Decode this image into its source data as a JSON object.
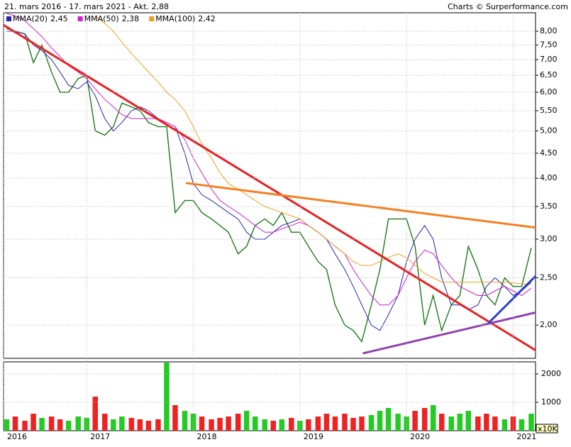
{
  "header": {
    "period": "21. mars 2016 - 17. mars 2021 - Akt. 2,88",
    "credit": "Charts © Surperformance.com"
  },
  "chart_data": [
    {
      "type": "line",
      "log_scale": true,
      "grid": true,
      "xlim": [
        2016.22,
        2021.21
      ],
      "xticks": [
        {
          "value": 2016.22,
          "label": "2016"
        },
        2017,
        2018,
        2019,
        2020,
        2021
      ],
      "ylim": [
        1.71,
        8.73
      ],
      "yticks": [
        {
          "value": 2,
          "label": "2,00"
        },
        {
          "value": 2.5,
          "label": "2,50"
        },
        {
          "value": 3,
          "label": "3,00"
        },
        {
          "value": 3.5,
          "label": "3,50"
        },
        {
          "value": 4,
          "label": "4,00"
        },
        {
          "value": 4.5,
          "label": "4,50"
        },
        {
          "value": 5,
          "label": "5,00"
        },
        {
          "value": 5.5,
          "label": "5,50"
        },
        {
          "value": 6,
          "label": "6,00"
        },
        {
          "value": 6.5,
          "label": "6,50"
        },
        {
          "value": 7,
          "label": "7,00"
        },
        {
          "value": 7.5,
          "label": "7,50"
        },
        {
          "value": 8,
          "label": "8,00"
        }
      ],
      "x": [
        2016.25,
        2016.33,
        2016.42,
        2016.5,
        2016.58,
        2016.67,
        2016.75,
        2016.83,
        2016.92,
        2017.0,
        2017.08,
        2017.17,
        2017.25,
        2017.33,
        2017.42,
        2017.5,
        2017.58,
        2017.67,
        2017.75,
        2017.83,
        2017.92,
        2018.0,
        2018.08,
        2018.17,
        2018.25,
        2018.33,
        2018.42,
        2018.5,
        2018.58,
        2018.67,
        2018.75,
        2018.83,
        2018.92,
        2019.0,
        2019.08,
        2019.17,
        2019.25,
        2019.33,
        2019.42,
        2019.5,
        2019.58,
        2019.67,
        2019.75,
        2019.83,
        2019.92,
        2020.0,
        2020.08,
        2020.17,
        2020.25,
        2020.33,
        2020.42,
        2020.5,
        2020.58,
        2020.67,
        2020.75,
        2020.83,
        2020.92,
        2021.0,
        2021.08,
        2021.17
      ],
      "series": [
        {
          "color": "#1a7a1a",
          "values": [
            8.1,
            8.0,
            7.9,
            6.9,
            7.5,
            6.6,
            6.0,
            6.0,
            6.4,
            6.5,
            5.0,
            4.9,
            5.1,
            5.7,
            5.6,
            5.5,
            5.2,
            5.1,
            5.1,
            3.4,
            3.6,
            3.6,
            3.4,
            3.3,
            3.2,
            3.1,
            2.8,
            2.9,
            3.2,
            3.3,
            3.2,
            3.4,
            3.1,
            3.1,
            2.9,
            2.7,
            2.6,
            2.2,
            2.0,
            1.95,
            1.85,
            2.2,
            2.6,
            3.3,
            3.3,
            3.3,
            2.9,
            2.0,
            2.3,
            1.95,
            2.2,
            2.3,
            2.9,
            2.6,
            2.3,
            2.2,
            2.5,
            2.4,
            2.4,
            2.88
          ]
        },
        {
          "name": "MMA(20)",
          "current": {
            "value": 2.45,
            "label": "2,45"
          },
          "color": "#2424b0",
          "values": [
            8.0,
            8.0,
            7.9,
            7.5,
            7.3,
            7.0,
            6.6,
            6.2,
            6.1,
            6.3,
            5.9,
            5.3,
            5.0,
            5.2,
            5.5,
            5.6,
            5.5,
            5.3,
            5.2,
            5.1,
            4.5,
            3.9,
            3.7,
            3.6,
            3.5,
            3.4,
            3.3,
            3.1,
            3.0,
            3.0,
            3.1,
            3.2,
            3.25,
            3.3,
            3.2,
            3.1,
            3.0,
            2.8,
            2.6,
            2.4,
            2.2,
            2.0,
            1.95,
            2.1,
            2.3,
            2.7,
            3.0,
            3.2,
            3.0,
            2.5,
            2.2,
            2.2,
            2.15,
            2.2,
            2.4,
            2.5,
            2.4,
            2.3,
            2.35,
            2.45
          ]
        },
        {
          "name": "MMA(50)",
          "current": {
            "value": 2.38,
            "label": "2,38"
          },
          "color": "#d020d0",
          "values": [
            8.7,
            8.6,
            8.4,
            8.1,
            7.8,
            7.4,
            7.1,
            6.8,
            6.6,
            6.4,
            6.1,
            5.8,
            5.6,
            5.4,
            5.3,
            5.3,
            5.3,
            5.3,
            5.2,
            5.1,
            4.8,
            4.4,
            4.1,
            3.8,
            3.6,
            3.5,
            3.4,
            3.3,
            3.2,
            3.1,
            3.1,
            3.15,
            3.2,
            3.25,
            3.2,
            3.1,
            3.0,
            2.9,
            2.8,
            2.6,
            2.45,
            2.3,
            2.2,
            2.2,
            2.3,
            2.5,
            2.7,
            2.85,
            2.8,
            2.65,
            2.5,
            2.4,
            2.35,
            2.3,
            2.3,
            2.35,
            2.4,
            2.35,
            2.3,
            2.38
          ]
        },
        {
          "name": "MMA(100)",
          "current": {
            "value": 2.42,
            "label": "2,42"
          },
          "color": "#f0a020",
          "values": [
            null,
            null,
            null,
            null,
            null,
            null,
            null,
            null,
            null,
            null,
            8.6,
            8.3,
            8.0,
            7.6,
            7.2,
            6.9,
            6.6,
            6.3,
            6.0,
            5.8,
            5.5,
            5.1,
            4.7,
            4.4,
            4.1,
            3.9,
            3.8,
            3.7,
            3.6,
            3.5,
            3.45,
            3.4,
            3.35,
            3.3,
            3.2,
            3.1,
            3.0,
            2.9,
            2.8,
            2.7,
            2.65,
            2.65,
            2.7,
            2.75,
            2.8,
            2.75,
            2.65,
            2.55,
            2.5,
            2.45,
            2.45,
            2.45,
            2.45,
            2.45,
            2.45,
            2.45,
            2.45,
            2.44,
            2.43,
            2.42
          ]
        }
      ],
      "trend_lines": [
        {
          "color": "#e82020",
          "x": [
            2016.22,
            2021.55
          ],
          "values": [
            8.24,
            1.6
          ]
        },
        {
          "color": "#f57f20",
          "x": [
            2017.93,
            2021.55
          ],
          "values": [
            3.91,
            3.1
          ]
        },
        {
          "color": "#9040b0",
          "x": [
            2019.59,
            2021.55
          ],
          "values": [
            1.75,
            2.21
          ]
        },
        {
          "color": "#2a40d0",
          "x": [
            2020.77,
            2021.55
          ],
          "values": [
            2.02,
            2.99
          ]
        }
      ]
    },
    {
      "type": "bar",
      "grid": true,
      "unit_label": "x10K",
      "up_color": "#22cc22",
      "down_color": "#ee2222",
      "xlim": [
        2016.22,
        2021.21
      ],
      "ylim": [
        0,
        2425
      ],
      "yticks": [
        1000,
        2000
      ],
      "x": [
        2016.25,
        2016.33,
        2016.42,
        2016.5,
        2016.58,
        2016.67,
        2016.75,
        2016.83,
        2016.92,
        2017.0,
        2017.08,
        2017.17,
        2017.25,
        2017.33,
        2017.42,
        2017.5,
        2017.58,
        2017.67,
        2017.75,
        2017.83,
        2017.92,
        2018.0,
        2018.08,
        2018.17,
        2018.25,
        2018.33,
        2018.42,
        2018.5,
        2018.58,
        2018.67,
        2018.75,
        2018.83,
        2018.92,
        2019.0,
        2019.08,
        2019.17,
        2019.25,
        2019.33,
        2019.42,
        2019.5,
        2019.58,
        2019.67,
        2019.75,
        2019.83,
        2019.92,
        2020.0,
        2020.08,
        2020.17,
        2020.25,
        2020.33,
        2020.42,
        2020.5,
        2020.58,
        2020.67,
        2020.75,
        2020.83,
        2020.92,
        2021.0,
        2021.08,
        2021.17
      ],
      "values": [
        400,
        500,
        350,
        600,
        450,
        500,
        400,
        350,
        500,
        450,
        1200,
        600,
        400,
        500,
        450,
        400,
        350,
        400,
        2400,
        900,
        700,
        600,
        500,
        400,
        450,
        500,
        600,
        700,
        500,
        400,
        350,
        400,
        450,
        350,
        400,
        500,
        600,
        500,
        600,
        450,
        500,
        550,
        700,
        800,
        600,
        500,
        700,
        800,
        900,
        600,
        500,
        600,
        700,
        500,
        600,
        500,
        400,
        500,
        400,
        600
      ]
    }
  ]
}
